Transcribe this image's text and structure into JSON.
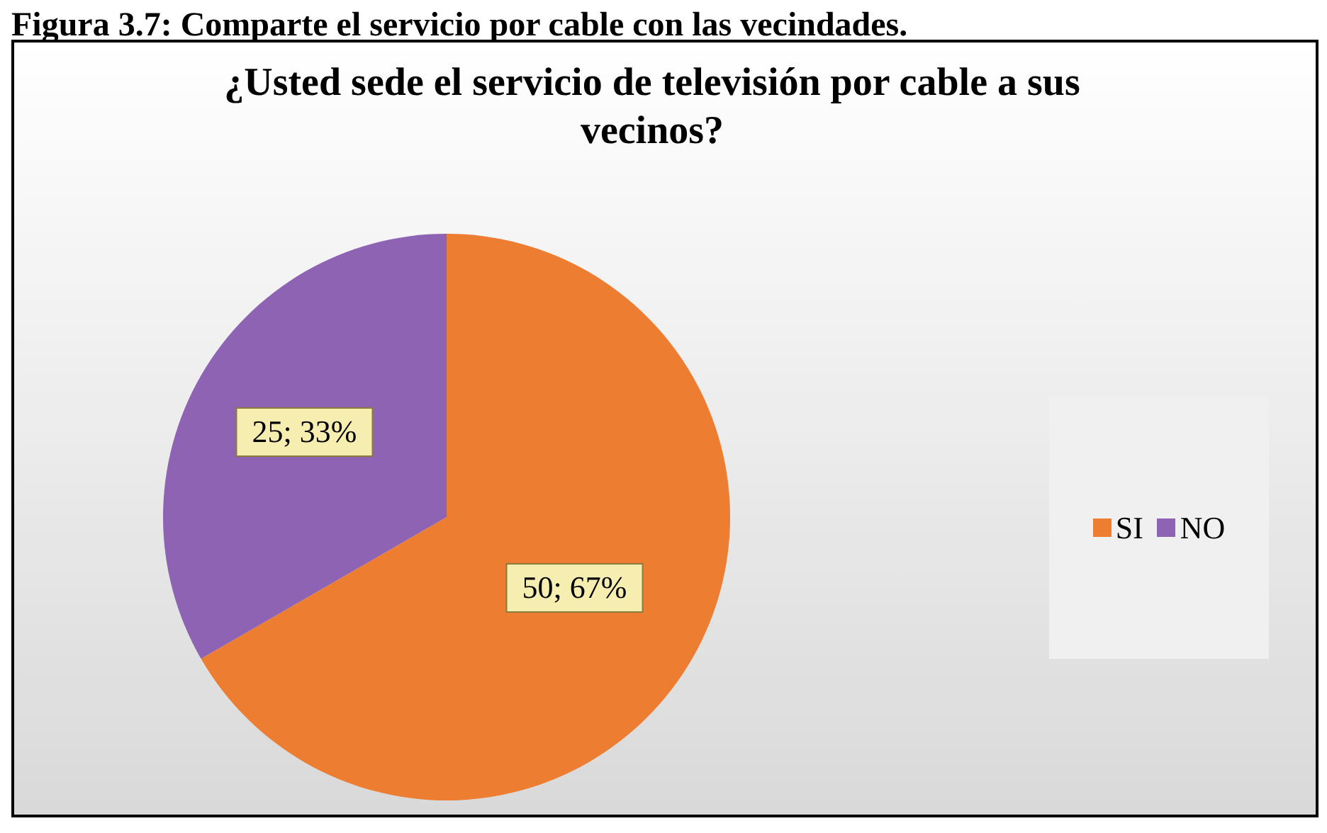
{
  "chart_data": {
    "type": "pie",
    "title": "¿Usted sede el servicio de televisión por cable a sus vecinos?",
    "annotations": [
      "Figura 3.7: Comparte el servicio por cable con las vecindades."
    ],
    "categories": [
      "SI",
      "NO"
    ],
    "values": [
      50,
      25
    ],
    "colors": [
      "#ed7d31",
      "#8e63b4"
    ],
    "value_labels": [
      "50; 67%",
      "25; 33%"
    ],
    "legend": "right"
  }
}
